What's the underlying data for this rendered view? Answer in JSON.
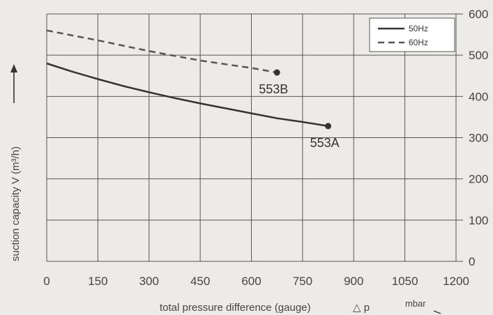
{
  "chart_data": {
    "type": "line",
    "xlabel": "total pressure difference (gauge)",
    "xlabel_symbol": "△ p",
    "xunit": "mbar",
    "ylabel": "suction capacity V (m³/h)",
    "xlim": [
      0,
      1200
    ],
    "ylim": [
      0,
      600
    ],
    "x_ticks": [
      "0",
      "150",
      "300",
      "450",
      "600",
      "750",
      "900",
      "1050",
      "1200"
    ],
    "y_ticks": [
      "0",
      "100",
      "200",
      "300",
      "400",
      "500",
      "600"
    ],
    "grid": true,
    "legend_position": "top-right",
    "series": [
      {
        "name": "50Hz",
        "style": "solid",
        "color": "#333333",
        "points": [
          [
            0,
            480
          ],
          [
            75,
            460
          ],
          [
            150,
            442
          ],
          [
            225,
            425
          ],
          [
            300,
            410
          ],
          [
            375,
            396
          ],
          [
            450,
            383
          ],
          [
            525,
            371
          ],
          [
            600,
            359
          ],
          [
            675,
            347
          ],
          [
            750,
            338
          ],
          [
            825,
            328
          ]
        ],
        "end_label": "553A"
      },
      {
        "name": "60Hz",
        "style": "dashed",
        "color": "#555555",
        "points": [
          [
            0,
            560
          ],
          [
            150,
            536
          ],
          [
            300,
            510
          ],
          [
            450,
            487
          ],
          [
            600,
            469
          ],
          [
            675,
            458
          ]
        ],
        "end_label": "553B"
      }
    ]
  }
}
